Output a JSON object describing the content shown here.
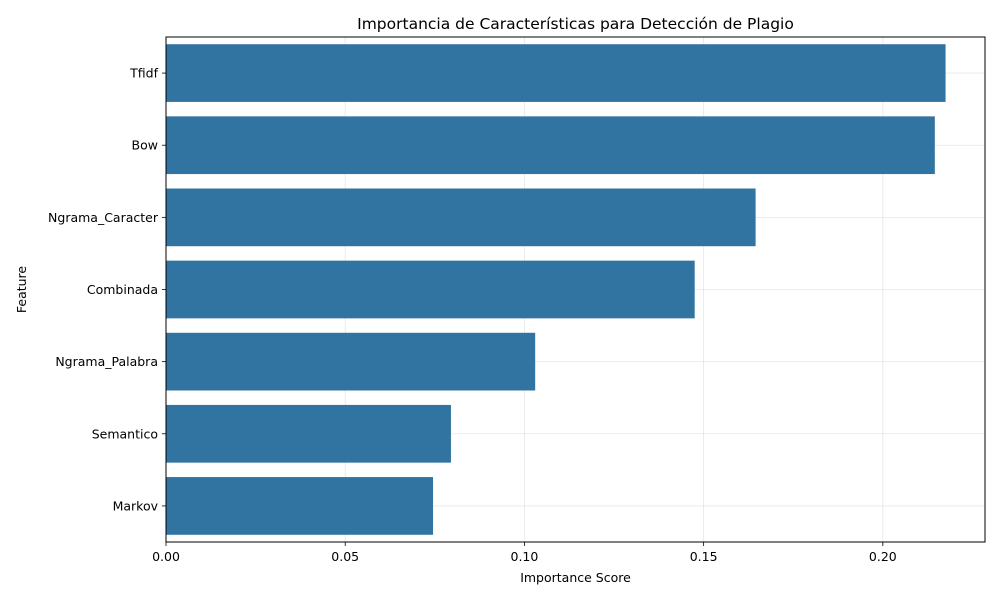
{
  "chart_data": {
    "type": "bar",
    "orientation": "horizontal",
    "title": "Importancia de Características para Detección de Plagio",
    "xlabel": "Importance Score",
    "ylabel": "Feature",
    "categories": [
      "Tfidf",
      "Bow",
      "Ngrama_Caracter",
      "Combinada",
      "Ngrama_Palabra",
      "Semantico",
      "Markov"
    ],
    "values": [
      0.2175,
      0.2145,
      0.1645,
      0.1475,
      0.103,
      0.0795,
      0.0745
    ],
    "xlim": [
      0,
      0.2285
    ],
    "xticks": [
      0.0,
      0.05,
      0.1,
      0.15,
      0.2
    ],
    "xtick_labels": [
      "0.00",
      "0.05",
      "0.10",
      "0.15",
      "0.20"
    ],
    "grid": true,
    "legend": "none",
    "bar_color": "#3274a1"
  }
}
